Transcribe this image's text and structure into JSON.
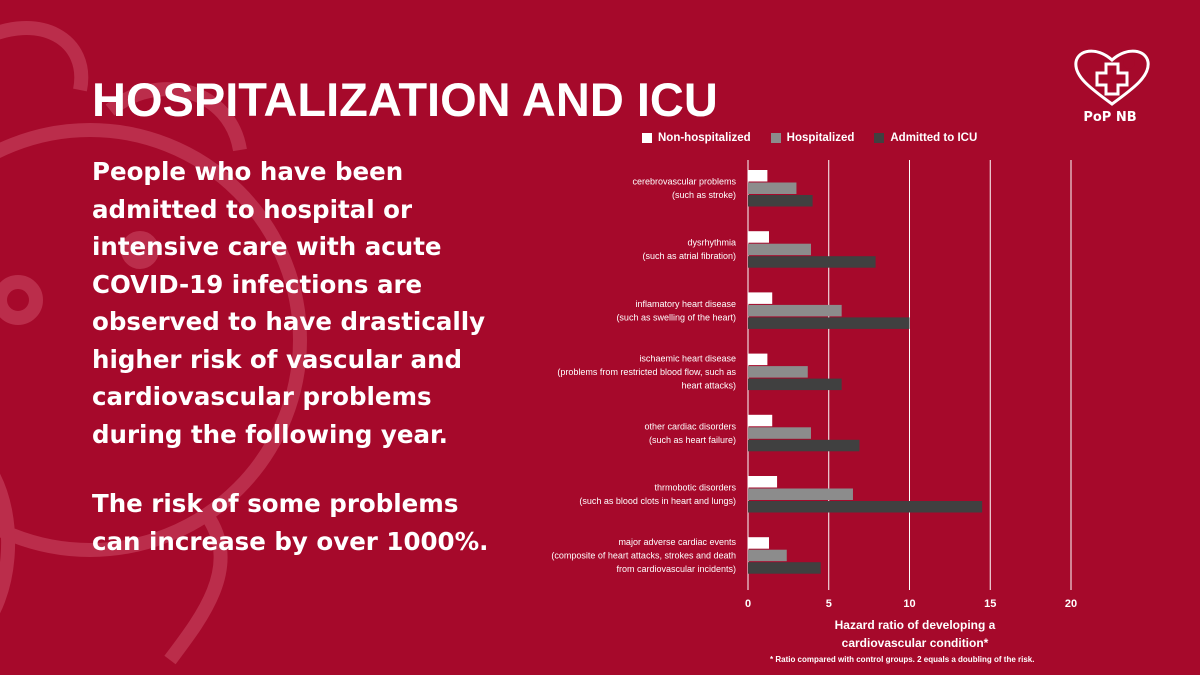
{
  "title": "HOSPITALIZATION AND ICU",
  "paragraph1": "People who have been admitted to hospital or intensive care with acute COVID-19 infections are observed to have drastically higher risk of vascular and cardiovascular problems during the following year.",
  "paragraph2": "The risk of some problems can increase by over 1000%.",
  "logo": {
    "text": "PoP NB",
    "icon": "heart-cross-icon"
  },
  "colors": {
    "background": "#a6092b",
    "non_hospitalized": "#ffffff",
    "hospitalized": "#8c8c8c",
    "icu": "#404040"
  },
  "chart_data": {
    "type": "bar",
    "orientation": "horizontal",
    "categories": [
      [
        "cerebrovascular problems",
        "(such as stroke)"
      ],
      [
        "dysrhythmia",
        "(such as atrial fibration)"
      ],
      [
        "inflamatory heart disease",
        "(such as swelling of the heart)"
      ],
      [
        "ischaemic heart disease",
        "(problems from restricted blood flow, such as",
        "heart attacks)"
      ],
      [
        "other cardiac disorders",
        "(such as heart failure)"
      ],
      [
        "thrmobotic disorders",
        "(such as blood clots in heart and lungs)"
      ],
      [
        "major adverse cardiac events",
        "(composite of heart attacks, strokes and death",
        "from cardiovascular incidents)"
      ]
    ],
    "series": [
      {
        "name": "Non-hospitalized",
        "values": [
          1.2,
          1.3,
          1.5,
          1.2,
          1.5,
          1.8,
          1.3
        ]
      },
      {
        "name": "Hospitalized",
        "values": [
          3.0,
          3.9,
          5.8,
          3.7,
          3.9,
          6.5,
          2.4
        ]
      },
      {
        "name": "Admitted to ICU",
        "values": [
          4.0,
          7.9,
          10.0,
          5.8,
          6.9,
          14.5,
          4.5
        ]
      }
    ],
    "xlim": [
      0,
      20
    ],
    "xticks": [
      "0",
      "5",
      "10",
      "15",
      "20"
    ],
    "xlabel_line1": "Hazard ratio of developing a",
    "xlabel_line2": "cardiovascular condition*",
    "footnote": "* Ratio compared with control groups. 2 equals a doubling of the risk.",
    "legend": "top",
    "grid": true
  }
}
